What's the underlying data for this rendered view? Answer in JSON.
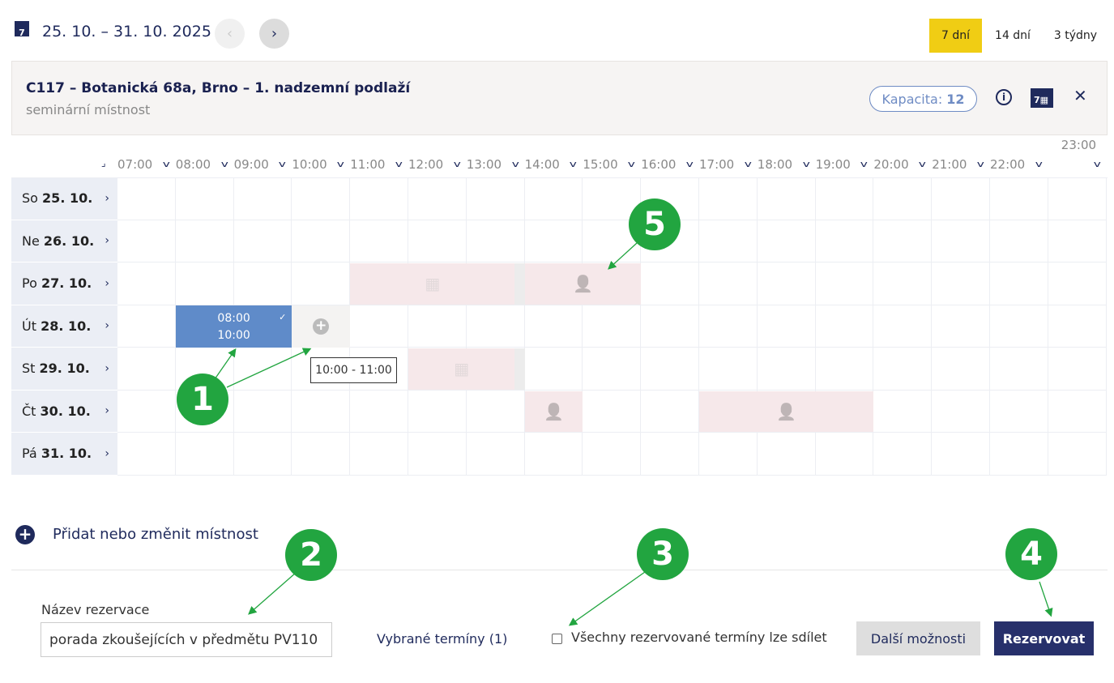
{
  "header": {
    "date_range": "25. 10. – 31. 10. 2025",
    "prev_icon": "chevron-left-icon",
    "next_icon": "chevron-right-icon",
    "ranges": [
      {
        "label": "7 dní",
        "active": true
      },
      {
        "label": "14 dní",
        "active": false
      },
      {
        "label": "3 týdny",
        "active": false
      }
    ]
  },
  "room": {
    "title": "C117 – Botanická 68a, Brno – 1. nadzemní podlaží",
    "subtitle": "seminární místnost",
    "capacity_label": "Kapacita:",
    "capacity_value": "12"
  },
  "grid": {
    "hours": [
      "07:00",
      "08:00",
      "09:00",
      "10:00",
      "11:00",
      "12:00",
      "13:00",
      "14:00",
      "15:00",
      "16:00",
      "17:00",
      "18:00",
      "19:00",
      "20:00",
      "21:00",
      "22:00",
      "23:00"
    ],
    "days": [
      {
        "dow": "So",
        "date": "25. 10."
      },
      {
        "dow": "Ne",
        "date": "26. 10."
      },
      {
        "dow": "Po",
        "date": "27. 10."
      },
      {
        "dow": "Út",
        "date": "28. 10."
      },
      {
        "dow": "St",
        "date": "29. 10."
      },
      {
        "dow": "Čt",
        "date": "30. 10."
      },
      {
        "dow": "Pá",
        "date": "31. 10."
      }
    ],
    "events": [
      {
        "day": 2,
        "start": 11,
        "end": 13.83,
        "kind": "reserved",
        "icon": "calendar-edit-icon"
      },
      {
        "day": 2,
        "start": 13.83,
        "end": 14,
        "kind": "buffer"
      },
      {
        "day": 2,
        "start": 14,
        "end": 16,
        "kind": "reserved",
        "icon": "user-edit-icon"
      },
      {
        "day": 4,
        "start": 12,
        "end": 13.83,
        "kind": "reserved",
        "icon": "calendar-edit-icon"
      },
      {
        "day": 4,
        "start": 13.83,
        "end": 14,
        "kind": "buffer"
      },
      {
        "day": 5,
        "start": 14,
        "end": 15,
        "kind": "reserved",
        "icon": "user-edit-icon"
      },
      {
        "day": 5,
        "start": 17,
        "end": 20,
        "kind": "reserved",
        "icon": "user-edit-icon"
      }
    ],
    "selected": {
      "day": 3,
      "start": 8,
      "end": 10,
      "start_label": "08:00",
      "end_label": "10:00"
    },
    "hover": {
      "day": 3,
      "start": 10,
      "end": 11,
      "tooltip": "10:00 - 11:00"
    }
  },
  "add_room": "Přidat nebo změnit místnost",
  "form": {
    "name_label": "Název rezervace",
    "name_value": "porada zkoušejících v předmětu PV110",
    "selected_terms": "Vybrané termíny (1)",
    "share_label": "Všechny rezervované termíny lze sdílet",
    "share_checked": false,
    "more_button": "Další možnosti",
    "reserve_button": "Rezervovat"
  },
  "annotations": [
    "1",
    "2",
    "3",
    "4",
    "5"
  ],
  "colors": {
    "accent": "#1f2a5c",
    "active_range": "#f0cd14",
    "selected": "#5f8bc9",
    "reserved": "#f6e8ea",
    "annotation": "#22a540"
  }
}
